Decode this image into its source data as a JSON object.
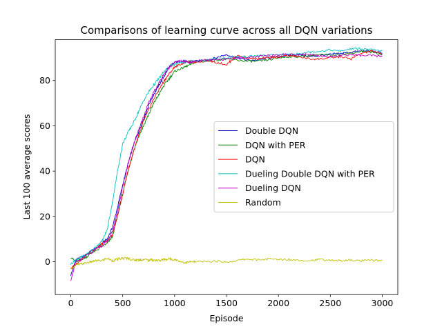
{
  "chart_data": {
    "type": "line",
    "title": "Comparisons of learning curve across all DQN variations",
    "xlabel": "Episode",
    "ylabel": "Last 100 average scores",
    "xlim": [
      -150,
      3150
    ],
    "ylim": [
      -14.5,
      98
    ],
    "xticks": [
      0,
      500,
      1000,
      1500,
      2000,
      2500,
      3000
    ],
    "yticks": [
      0,
      20,
      40,
      60,
      80
    ],
    "grid": false,
    "legend_position": "center-right",
    "series": [
      {
        "name": "Double DQN",
        "color": "#0000bf",
        "x": [
          0,
          50,
          100,
          150,
          200,
          250,
          300,
          350,
          400,
          450,
          500,
          550,
          600,
          650,
          700,
          750,
          800,
          850,
          900,
          950,
          1000,
          1050,
          1100,
          1150,
          1200,
          1300,
          1400,
          1500,
          1600,
          1700,
          1800,
          1900,
          2000,
          2100,
          2200,
          2300,
          2400,
          2500,
          2600,
          2700,
          2800,
          2900,
          3000
        ],
        "y": [
          -6,
          1,
          2,
          3,
          5,
          6,
          8,
          10,
          15,
          24,
          34,
          43,
          51,
          57,
          63,
          69,
          74,
          78,
          82,
          86,
          88,
          88.5,
          88.5,
          88,
          88.5,
          89,
          90,
          91.5,
          90,
          89,
          89,
          90,
          90.5,
          91,
          91.5,
          90.5,
          91,
          91.5,
          92,
          92.5,
          93,
          93,
          92
        ]
      },
      {
        "name": "DQN with PER",
        "color": "#008000",
        "x": [
          0,
          50,
          100,
          150,
          200,
          250,
          300,
          350,
          400,
          450,
          500,
          550,
          600,
          650,
          700,
          750,
          800,
          850,
          900,
          950,
          1000,
          1050,
          1100,
          1150,
          1200,
          1300,
          1400,
          1500,
          1600,
          1700,
          1800,
          1900,
          2000,
          2100,
          2200,
          2300,
          2400,
          2500,
          2600,
          2700,
          2800,
          2900,
          3000
        ],
        "y": [
          2,
          0,
          1,
          2,
          4,
          5,
          7,
          8,
          11,
          20,
          30,
          40,
          48,
          55,
          60,
          65,
          70,
          74,
          78,
          81,
          84,
          85,
          86,
          87,
          88,
          88.5,
          89,
          89.5,
          89,
          88.5,
          88.5,
          89,
          90,
          90.5,
          90.5,
          91,
          91.5,
          91,
          91.5,
          92,
          93,
          92.5,
          91.5
        ]
      },
      {
        "name": "DQN",
        "color": "#ff0000",
        "x": [
          0,
          50,
          100,
          150,
          200,
          250,
          300,
          350,
          400,
          450,
          500,
          550,
          600,
          650,
          700,
          750,
          800,
          850,
          900,
          950,
          1000,
          1050,
          1100,
          1150,
          1200,
          1300,
          1400,
          1500,
          1550,
          1600,
          1700,
          1800,
          1900,
          2000,
          2100,
          2200,
          2300,
          2400,
          2500,
          2600,
          2700,
          2800,
          2900,
          3000
        ],
        "y": [
          -3,
          -1,
          1,
          3,
          5,
          6,
          8,
          9,
          12,
          20,
          30,
          40,
          48,
          55,
          62,
          67,
          72,
          76,
          80,
          83,
          86,
          87,
          88,
          88.5,
          88,
          89,
          88,
          87,
          89,
          91,
          90,
          89.5,
          90,
          90.5,
          91,
          90.5,
          89.5,
          89.5,
          90,
          90.5,
          89.5,
          92,
          93,
          91.5
        ]
      },
      {
        "name": "Dueling Double DQN with PER",
        "color": "#00bfbf",
        "x": [
          0,
          50,
          100,
          150,
          200,
          250,
          300,
          350,
          400,
          450,
          500,
          550,
          600,
          650,
          700,
          750,
          800,
          850,
          900,
          950,
          1000,
          1050,
          1100,
          1150,
          1200,
          1300,
          1400,
          1500,
          1600,
          1700,
          1800,
          1900,
          2000,
          2100,
          2200,
          2300,
          2400,
          2500,
          2600,
          2700,
          2800,
          2900,
          3000
        ],
        "y": [
          -1,
          1,
          2,
          3,
          5,
          7,
          9,
          14,
          26,
          40,
          52,
          57,
          61,
          66,
          71,
          75,
          78,
          81,
          84,
          86,
          87,
          88,
          88,
          88.5,
          88.5,
          89,
          89.5,
          90,
          90.5,
          90.5,
          91,
          91,
          91.5,
          91.5,
          92,
          92.5,
          93,
          93.5,
          93,
          94,
          94,
          93.5,
          93
        ]
      },
      {
        "name": "Dueling DQN",
        "color": "#bf00bf",
        "x": [
          0,
          50,
          100,
          150,
          200,
          250,
          300,
          350,
          400,
          450,
          500,
          550,
          600,
          650,
          700,
          750,
          800,
          850,
          900,
          950,
          1000,
          1050,
          1100,
          1150,
          1200,
          1300,
          1400,
          1500,
          1600,
          1700,
          1800,
          1900,
          2000,
          2100,
          2200,
          2300,
          2400,
          2500,
          2600,
          2700,
          2800,
          2900,
          3000
        ],
        "y": [
          -8,
          0,
          1,
          3,
          4,
          6,
          7,
          9,
          13,
          22,
          33,
          43,
          51,
          58,
          64,
          70,
          75,
          79,
          83,
          86,
          88,
          88.5,
          88.5,
          88,
          88.5,
          89,
          89,
          89.5,
          90,
          90,
          90.5,
          91,
          91.5,
          91.5,
          91.5,
          91.5,
          91,
          90.5,
          91,
          91.5,
          91,
          91,
          90.5
        ]
      },
      {
        "name": "Random",
        "color": "#bfbf00",
        "x": [
          0,
          50,
          100,
          150,
          200,
          250,
          300,
          350,
          400,
          450,
          500,
          550,
          600,
          650,
          700,
          750,
          800,
          850,
          900,
          950,
          1000,
          1050,
          1100,
          1150,
          1200,
          1300,
          1400,
          1500,
          1600,
          1700,
          1800,
          1900,
          2000,
          2100,
          2200,
          2300,
          2400,
          2500,
          2600,
          2700,
          2800,
          2900,
          3000
        ],
        "y": [
          -3,
          -1.5,
          -1,
          -0.5,
          0,
          0.5,
          0.5,
          1.5,
          0.5,
          1,
          1.5,
          1.5,
          0.8,
          0.8,
          1,
          0.7,
          0.8,
          0.5,
          1,
          1.2,
          1,
          0.2,
          -0.5,
          0,
          0,
          0,
          0.3,
          -0.2,
          0.5,
          1.2,
          0.8,
          1.2,
          1,
          1,
          0.7,
          0.5,
          1,
          0.6,
          0.5,
          0.7,
          0.4,
          0.7,
          0.4
        ]
      }
    ]
  }
}
